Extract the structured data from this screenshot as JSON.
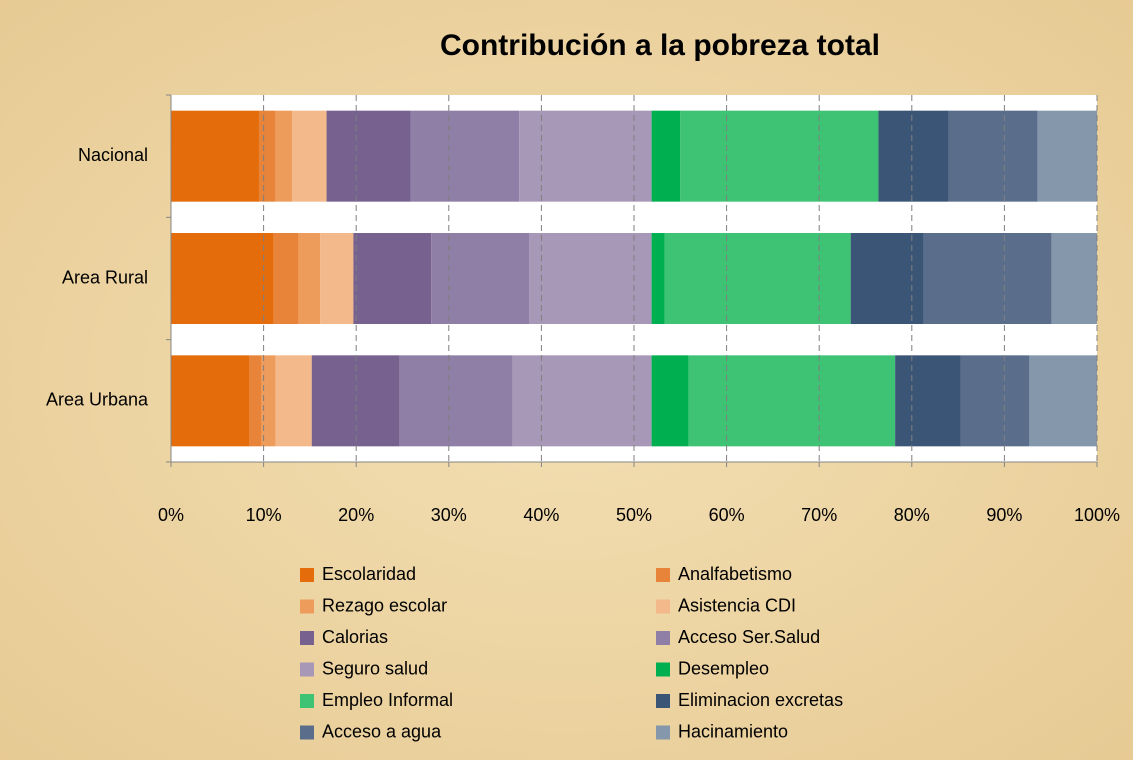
{
  "chart_data": {
    "type": "stacked-barh",
    "title": "Contribución a la pobreza total",
    "categories": [
      "Nacional",
      "Area Rural",
      "Area Urbana"
    ],
    "series": [
      {
        "name": "Escolaridad",
        "color": "#e46c0a",
        "values": [
          9.5,
          11.1,
          8.5
        ]
      },
      {
        "name": "Analfabetismo",
        "color": "#e8843a",
        "values": [
          1.8,
          2.7,
          1.3
        ]
      },
      {
        "name": "Rezago escolar",
        "color": "#ee9c5c",
        "values": [
          1.8,
          2.3,
          1.5
        ]
      },
      {
        "name": "Asistencia CDI",
        "color": "#f3b98a",
        "values": [
          3.7,
          3.6,
          3.9
        ]
      },
      {
        "name": "Calorias",
        "color": "#76618f",
        "values": [
          9.1,
          8.4,
          9.5
        ]
      },
      {
        "name": "Acceso Ser.Salud",
        "color": "#8f7ea6",
        "values": [
          11.7,
          10.6,
          12.2
        ]
      },
      {
        "name": "Seguro salud",
        "color": "#a898b7",
        "values": [
          14.3,
          13.2,
          15.0
        ]
      },
      {
        "name": "Desempleo",
        "color": "#00b050",
        "values": [
          3.1,
          1.4,
          4.0
        ]
      },
      {
        "name": "Empleo Informal",
        "color": "#3ec375",
        "values": [
          21.4,
          20.1,
          22.3
        ]
      },
      {
        "name": "Eliminacion excretas",
        "color": "#3b5577",
        "values": [
          7.6,
          7.9,
          7.1
        ]
      },
      {
        "name": "Acceso a agua",
        "color": "#5a6e8c",
        "values": [
          9.6,
          13.8,
          7.4
        ]
      },
      {
        "name": "Hacinamiento",
        "color": "#8597aa",
        "values": [
          6.4,
          4.9,
          7.3
        ]
      }
    ],
    "xlim": [
      0,
      100
    ],
    "xticks": [
      {
        "value": 0,
        "label": "0%"
      },
      {
        "value": 10,
        "label": "10%"
      },
      {
        "value": 20,
        "label": "20%"
      },
      {
        "value": 30,
        "label": "30%"
      },
      {
        "value": 40,
        "label": "40%"
      },
      {
        "value": 50,
        "label": "50%"
      },
      {
        "value": 60,
        "label": "60%"
      },
      {
        "value": 70,
        "label": "70%"
      },
      {
        "value": 80,
        "label": "80%"
      },
      {
        "value": 90,
        "label": "90%"
      },
      {
        "value": 100,
        "label": "100%"
      }
    ],
    "grid": true
  }
}
